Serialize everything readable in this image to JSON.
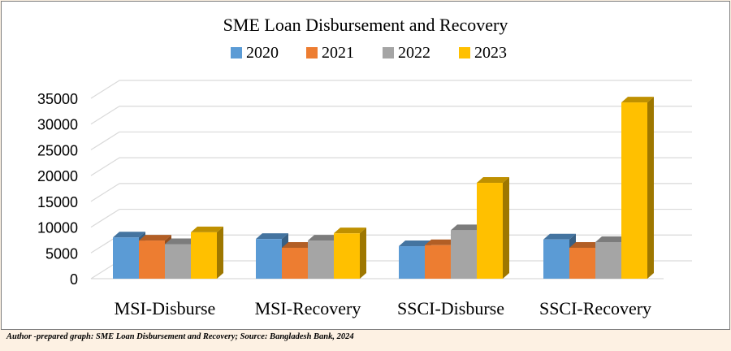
{
  "chart_data": {
    "type": "bar",
    "title": "SME Loan Disbursement and Recovery",
    "categories": [
      "MSI-Disburse",
      "MSI-Recovery",
      "SSCI-Disburse",
      "SSCI-Recovery"
    ],
    "series": [
      {
        "name": "2020",
        "color": "#5b9bd5",
        "values": [
          8000,
          7700,
          6300,
          7600
        ]
      },
      {
        "name": "2021",
        "color": "#ed7d31",
        "values": [
          7400,
          6000,
          6500,
          6000
        ]
      },
      {
        "name": "2022",
        "color": "#a5a5a5",
        "values": [
          6700,
          7400,
          9400,
          7100
        ]
      },
      {
        "name": "2023",
        "color": "#ffc000",
        "values": [
          9000,
          8800,
          18600,
          34200
        ]
      }
    ],
    "ylim": [
      0,
      35000
    ],
    "yticks": [
      "0",
      "5000",
      "10000",
      "15000",
      "20000",
      "25000",
      "30000",
      "35000"
    ],
    "legend_position": "top",
    "grid": true,
    "xlabel": "",
    "ylabel": ""
  },
  "caption": "Author -prepared graph: SME Loan Disbursement and Recovery; Source: Bangladesh Bank, 2024"
}
